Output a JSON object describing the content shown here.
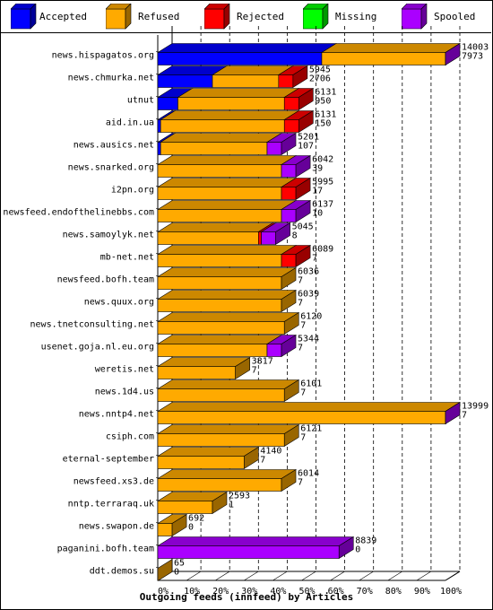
{
  "colors": {
    "Accepted": "#0000ff",
    "Refused": "#ffaa00",
    "Rejected": "#ff0000",
    "Missing": "#00ff00",
    "Spooled": "#aa00ff"
  },
  "chart_data": {
    "type": "bar",
    "orientation": "horizontal",
    "stacked": true,
    "title": "",
    "xlabel": "Outgoing feeds (innfeed) by Articles",
    "ylabel": "",
    "xlim": [
      0,
      100
    ],
    "x_unit": "%",
    "x_ticks": [
      "0%",
      "10%",
      "20%",
      "30%",
      "40%",
      "50%",
      "60%",
      "70%",
      "80%",
      "90%",
      "100%"
    ],
    "grid": "vertical dashed",
    "legend_position": "top",
    "legend": [
      "Accepted",
      "Refused",
      "Rejected",
      "Missing",
      "Spooled"
    ],
    "rows": [
      {
        "name": "news.hispagatos.org",
        "offered": "14003",
        "accepted": "7973",
        "pct": {
          "Accepted": 57,
          "Refused": 43,
          "Rejected": 0,
          "Missing": 0,
          "Spooled": 5
        }
      },
      {
        "name": "news.chmurka.net",
        "offered": "5945",
        "accepted": "2706",
        "pct": {
          "Accepted": 19,
          "Refused": 23,
          "Rejected": 5,
          "Missing": 0,
          "Spooled": 0
        }
      },
      {
        "name": "utnut",
        "offered": "6131",
        "accepted": "950",
        "pct": {
          "Accepted": 7,
          "Refused": 37,
          "Rejected": 5,
          "Missing": 0,
          "Spooled": 0
        }
      },
      {
        "name": "aid.in.ua",
        "offered": "6131",
        "accepted": "150",
        "pct": {
          "Accepted": 1,
          "Refused": 43,
          "Rejected": 5,
          "Missing": 0,
          "Spooled": 0
        }
      },
      {
        "name": "news.ausics.net",
        "offered": "5201",
        "accepted": "107",
        "pct": {
          "Accepted": 1,
          "Refused": 37,
          "Rejected": 0,
          "Missing": 0,
          "Spooled": 5
        }
      },
      {
        "name": "news.snarked.org",
        "offered": "6042",
        "accepted": "39",
        "pct": {
          "Accepted": 0,
          "Refused": 43,
          "Rejected": 0,
          "Missing": 0,
          "Spooled": 5
        }
      },
      {
        "name": "i2pn.org",
        "offered": "5995",
        "accepted": "17",
        "pct": {
          "Accepted": 0,
          "Refused": 43,
          "Rejected": 5,
          "Missing": 0,
          "Spooled": 0
        }
      },
      {
        "name": "newsfeed.endofthelinebbs.com",
        "offered": "6137",
        "accepted": "10",
        "pct": {
          "Accepted": 0,
          "Refused": 43,
          "Rejected": 0,
          "Missing": 0,
          "Spooled": 5
        }
      },
      {
        "name": "news.samoylyk.net",
        "offered": "5045",
        "accepted": "8",
        "pct": {
          "Accepted": 0,
          "Refused": 35,
          "Rejected": 1,
          "Missing": 0,
          "Spooled": 5
        }
      },
      {
        "name": "mb-net.net",
        "offered": "6089",
        "accepted": "7",
        "pct": {
          "Accepted": 0,
          "Refused": 43,
          "Rejected": 5,
          "Missing": 0,
          "Spooled": 0
        }
      },
      {
        "name": "newsfeed.bofh.team",
        "offered": "6036",
        "accepted": "7",
        "pct": {
          "Accepted": 0,
          "Refused": 43,
          "Rejected": 0,
          "Missing": 0,
          "Spooled": 0
        }
      },
      {
        "name": "news.quux.org",
        "offered": "6039",
        "accepted": "7",
        "pct": {
          "Accepted": 0,
          "Refused": 43,
          "Rejected": 0,
          "Missing": 0,
          "Spooled": 0
        }
      },
      {
        "name": "news.tnetconsulting.net",
        "offered": "6120",
        "accepted": "7",
        "pct": {
          "Accepted": 0,
          "Refused": 44,
          "Rejected": 0,
          "Missing": 0,
          "Spooled": 0
        }
      },
      {
        "name": "usenet.goja.nl.eu.org",
        "offered": "5344",
        "accepted": "7",
        "pct": {
          "Accepted": 0,
          "Refused": 38,
          "Rejected": 0,
          "Missing": 0,
          "Spooled": 5
        }
      },
      {
        "name": "weretis.net",
        "offered": "3817",
        "accepted": "7",
        "pct": {
          "Accepted": 0,
          "Refused": 27,
          "Rejected": 0,
          "Missing": 0,
          "Spooled": 0
        }
      },
      {
        "name": "news.1d4.us",
        "offered": "6101",
        "accepted": "7",
        "pct": {
          "Accepted": 0,
          "Refused": 44,
          "Rejected": 0,
          "Missing": 0,
          "Spooled": 0
        }
      },
      {
        "name": "news.nntp4.net",
        "offered": "13999",
        "accepted": "7",
        "pct": {
          "Accepted": 0,
          "Refused": 100,
          "Rejected": 0,
          "Missing": 0,
          "Spooled": 5
        }
      },
      {
        "name": "csiph.com",
        "offered": "6121",
        "accepted": "7",
        "pct": {
          "Accepted": 0,
          "Refused": 44,
          "Rejected": 0,
          "Missing": 0,
          "Spooled": 0
        }
      },
      {
        "name": "eternal-september",
        "offered": "4140",
        "accepted": "7",
        "pct": {
          "Accepted": 0,
          "Refused": 30,
          "Rejected": 0,
          "Missing": 0,
          "Spooled": 0
        }
      },
      {
        "name": "newsfeed.xs3.de",
        "offered": "6014",
        "accepted": "7",
        "pct": {
          "Accepted": 0,
          "Refused": 43,
          "Rejected": 0,
          "Missing": 0,
          "Spooled": 0
        }
      },
      {
        "name": "nntp.terraraq.uk",
        "offered": "2593",
        "accepted": "1",
        "pct": {
          "Accepted": 0,
          "Refused": 19,
          "Rejected": 0,
          "Missing": 0,
          "Spooled": 0
        }
      },
      {
        "name": "news.swapon.de",
        "offered": "692",
        "accepted": "0",
        "pct": {
          "Accepted": 0,
          "Refused": 5,
          "Rejected": 0,
          "Missing": 0,
          "Spooled": 0
        }
      },
      {
        "name": "paganini.bofh.team",
        "offered": "8839",
        "accepted": "0",
        "pct": {
          "Accepted": 0,
          "Refused": 0,
          "Rejected": 0,
          "Missing": 0,
          "Spooled": 63
        }
      },
      {
        "name": "ddt.demos.su",
        "offered": "65",
        "accepted": "0",
        "pct": {
          "Accepted": 0,
          "Refused": 0,
          "Rejected": 0,
          "Missing": 0,
          "Spooled": 0
        }
      }
    ]
  }
}
